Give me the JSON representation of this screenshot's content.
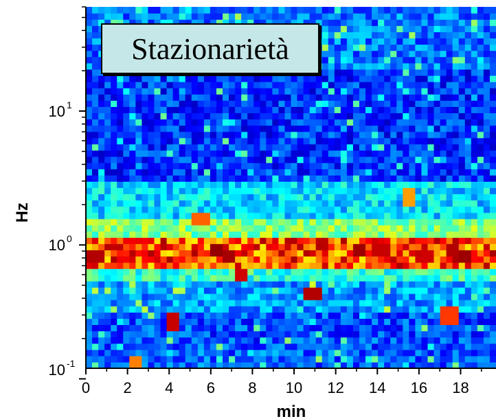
{
  "chart_data": {
    "type": "heatmap",
    "title": "Stazionarietà",
    "xlabel": "min",
    "ylabel": "Hz",
    "x_range": [
      0,
      19.7
    ],
    "y_range": [
      0.12,
      60
    ],
    "y_scale": "log",
    "x_ticks": [
      "0",
      "2",
      "4",
      "6",
      "8",
      "10",
      "12",
      "14",
      "16",
      "18"
    ],
    "x_tick_values": [
      0,
      2,
      4,
      6,
      8,
      10,
      12,
      14,
      16,
      18
    ],
    "y_ticks": [
      {
        "value": 0.1,
        "base": "10",
        "exp": "-1"
      },
      {
        "value": 1,
        "base": "10",
        "exp": "0"
      },
      {
        "value": 10,
        "base": "10",
        "exp": "1"
      }
    ],
    "colormap": "jet",
    "n_time_bins": 66,
    "frequency_bands": [
      {
        "f_low": 0.12,
        "f_high": 0.16,
        "level": 0.22
      },
      {
        "f_low": 0.16,
        "f_high": 0.3,
        "level": 0.2
      },
      {
        "f_low": 0.3,
        "f_high": 0.55,
        "level": 0.28
      },
      {
        "f_low": 0.55,
        "f_high": 0.7,
        "level": 0.42
      },
      {
        "f_low": 0.7,
        "f_high": 1.1,
        "level": 0.8
      },
      {
        "f_low": 1.1,
        "f_high": 1.6,
        "level": 0.5
      },
      {
        "f_low": 1.6,
        "f_high": 3.0,
        "level": 0.34
      },
      {
        "f_low": 3.0,
        "f_high": 20,
        "level": 0.17
      },
      {
        "f_low": 20,
        "f_high": 60,
        "level": 0.24
      }
    ],
    "hot_spots": [
      {
        "t": 0.4,
        "f": 0.82,
        "level": 0.95
      },
      {
        "t": 6.2,
        "f": 0.9,
        "level": 0.98
      },
      {
        "t": 6.8,
        "f": 0.82,
        "level": 0.96
      },
      {
        "t": 7.4,
        "f": 0.58,
        "level": 0.92
      },
      {
        "t": 4.1,
        "f": 0.27,
        "level": 0.93
      },
      {
        "t": 10.9,
        "f": 0.42,
        "level": 0.95
      },
      {
        "t": 11.4,
        "f": 0.98,
        "level": 0.94
      },
      {
        "t": 13.1,
        "f": 0.95,
        "level": 0.97
      },
      {
        "t": 14.2,
        "f": 0.88,
        "level": 0.93
      },
      {
        "t": 16.3,
        "f": 0.82,
        "level": 0.92
      },
      {
        "t": 17.6,
        "f": 0.88,
        "level": 0.95
      },
      {
        "t": 18.3,
        "f": 0.8,
        "level": 0.97
      },
      {
        "t": 17.5,
        "f": 0.3,
        "level": 0.82
      },
      {
        "t": 2.4,
        "f": 0.13,
        "level": 0.75
      },
      {
        "t": 5.5,
        "f": 1.6,
        "level": 0.78
      },
      {
        "t": 15.5,
        "f": 2.3,
        "level": 0.72
      }
    ],
    "grid": false,
    "legend": "none"
  }
}
